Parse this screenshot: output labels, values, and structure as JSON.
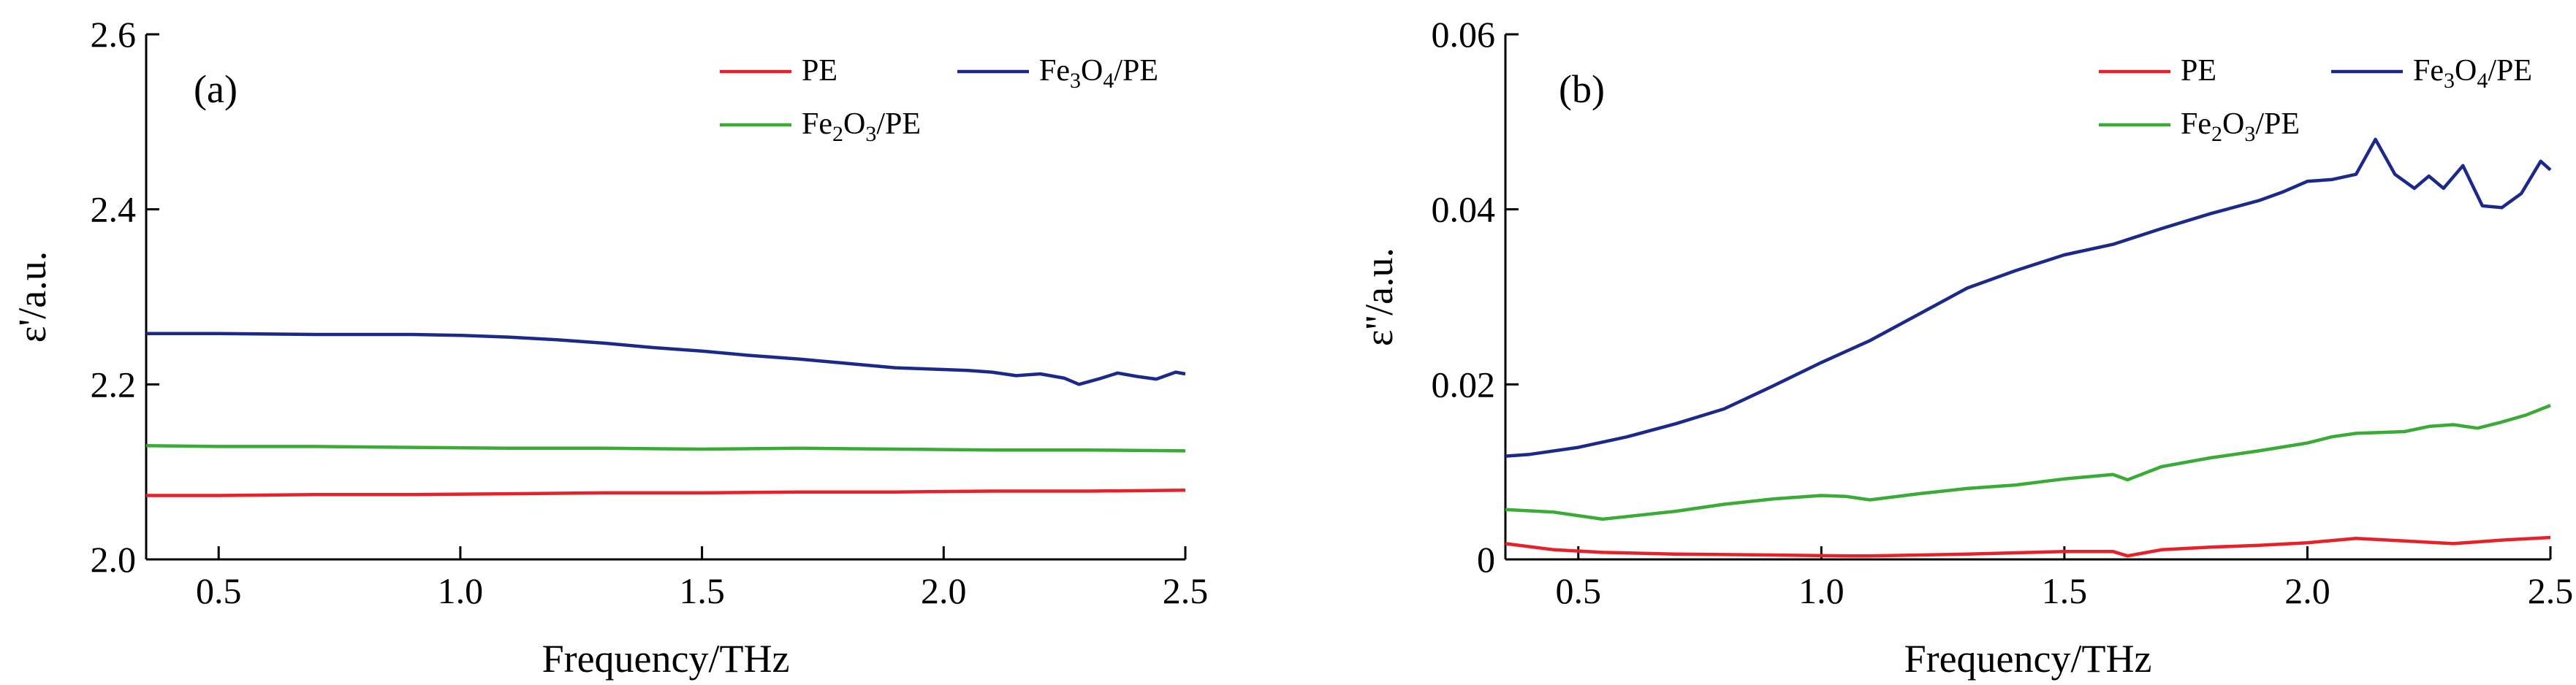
{
  "chart_data": [
    {
      "type": "line",
      "panel_label": "(a)",
      "xlabel": "Frequency/THz",
      "ylabel": "ε'/a.u.",
      "xlim": [
        0.35,
        2.5
      ],
      "ylim": [
        2.0,
        2.6
      ],
      "xticks": [
        0.5,
        1.0,
        1.5,
        2.0,
        2.5
      ],
      "xtick_labels": [
        "0.5",
        "1.0",
        "1.5",
        "2.0",
        "2.5"
      ],
      "yticks": [
        2.0,
        2.2,
        2.4,
        2.6
      ],
      "ytick_labels": [
        "2.0",
        "2.2",
        "2.4",
        "2.6"
      ],
      "grid": false,
      "legend_position": "top-right",
      "series": [
        {
          "name": "PE",
          "name_main": "PE",
          "name_formula": [],
          "color": "#e8202a",
          "x": [
            0.35,
            0.5,
            0.7,
            0.9,
            1.1,
            1.3,
            1.5,
            1.7,
            1.9,
            2.1,
            2.3,
            2.5
          ],
          "y": [
            2.073,
            2.073,
            2.074,
            2.074,
            2.075,
            2.076,
            2.076,
            2.077,
            2.077,
            2.078,
            2.078,
            2.079
          ]
        },
        {
          "name": "Fe₃O₄/PE",
          "name_main": "/PE",
          "name_formula": [
            {
              "t": "Fe",
              "s": false
            },
            {
              "t": "3",
              "s": true
            },
            {
              "t": "O",
              "s": false
            },
            {
              "t": "4",
              "s": true
            }
          ],
          "color": "#1b2a8a",
          "x": [
            0.35,
            0.5,
            0.7,
            0.9,
            1.0,
            1.1,
            1.2,
            1.3,
            1.4,
            1.5,
            1.6,
            1.7,
            1.8,
            1.9,
            2.0,
            2.05,
            2.1,
            2.15,
            2.2,
            2.25,
            2.28,
            2.32,
            2.36,
            2.4,
            2.44,
            2.48,
            2.5
          ],
          "y": [
            2.258,
            2.258,
            2.257,
            2.257,
            2.256,
            2.254,
            2.251,
            2.247,
            2.242,
            2.238,
            2.233,
            2.229,
            2.224,
            2.219,
            2.217,
            2.216,
            2.214,
            2.21,
            2.212,
            2.207,
            2.2,
            2.206,
            2.213,
            2.209,
            2.206,
            2.214,
            2.212
          ]
        },
        {
          "name": "Fe₂O₃/PE",
          "name_main": "/PE",
          "name_formula": [
            {
              "t": "Fe",
              "s": false
            },
            {
              "t": "2",
              "s": true
            },
            {
              "t": "O",
              "s": false
            },
            {
              "t": "3",
              "s": true
            }
          ],
          "color": "#3aab35",
          "x": [
            0.35,
            0.5,
            0.7,
            0.9,
            1.1,
            1.3,
            1.5,
            1.7,
            1.9,
            2.1,
            2.3,
            2.5
          ],
          "y": [
            2.13,
            2.129,
            2.129,
            2.128,
            2.127,
            2.127,
            2.126,
            2.127,
            2.126,
            2.125,
            2.125,
            2.124
          ]
        }
      ]
    },
    {
      "type": "line",
      "panel_label": "(b)",
      "xlabel": "Frequency/THz",
      "ylabel": "ε''/a.u.",
      "xlim": [
        0.35,
        2.5
      ],
      "ylim": [
        0,
        0.06
      ],
      "xticks": [
        0.5,
        1.0,
        1.5,
        2.0,
        2.5
      ],
      "xtick_labels": [
        "0.5",
        "1.0",
        "1.5",
        "2.0",
        "2.5"
      ],
      "yticks": [
        0,
        0.02,
        0.04,
        0.06
      ],
      "ytick_labels": [
        "0",
        "0.02",
        "0.04",
        "0.06"
      ],
      "grid": false,
      "legend_position": "top-right",
      "series": [
        {
          "name": "PE",
          "name_main": "PE",
          "name_formula": [],
          "color": "#e8202a",
          "x": [
            0.35,
            0.45,
            0.55,
            0.7,
            0.9,
            1.05,
            1.1,
            1.3,
            1.5,
            1.6,
            1.63,
            1.7,
            1.8,
            1.9,
            2.0,
            2.1,
            2.2,
            2.3,
            2.4,
            2.5
          ],
          "y": [
            0.0018,
            0.0011,
            0.0008,
            0.0006,
            0.0005,
            0.0004,
            0.0004,
            0.0006,
            0.0009,
            0.0009,
            0.0004,
            0.0011,
            0.0014,
            0.0016,
            0.0019,
            0.0024,
            0.0021,
            0.0018,
            0.0022,
            0.0025
          ]
        },
        {
          "name": "Fe₃O₄/PE",
          "name_main": "/PE",
          "name_formula": [
            {
              "t": "Fe",
              "s": false
            },
            {
              "t": "3",
              "s": true
            },
            {
              "t": "O",
              "s": false
            },
            {
              "t": "4",
              "s": true
            }
          ],
          "color": "#1b2a8a",
          "x": [
            0.35,
            0.4,
            0.5,
            0.6,
            0.7,
            0.8,
            0.9,
            1.0,
            1.1,
            1.2,
            1.3,
            1.4,
            1.5,
            1.6,
            1.7,
            1.8,
            1.9,
            1.95,
            2.0,
            2.05,
            2.1,
            2.14,
            2.18,
            2.22,
            2.25,
            2.28,
            2.32,
            2.36,
            2.4,
            2.44,
            2.48,
            2.5
          ],
          "y": [
            0.0118,
            0.012,
            0.0128,
            0.014,
            0.0155,
            0.0172,
            0.0198,
            0.0225,
            0.025,
            0.028,
            0.031,
            0.033,
            0.0348,
            0.036,
            0.0378,
            0.0395,
            0.041,
            0.042,
            0.0432,
            0.0434,
            0.044,
            0.048,
            0.044,
            0.0424,
            0.0438,
            0.0424,
            0.045,
            0.0404,
            0.0402,
            0.0418,
            0.0455,
            0.0445
          ]
        },
        {
          "name": "Fe₂O₃/PE",
          "name_main": "/PE",
          "name_formula": [
            {
              "t": "Fe",
              "s": false
            },
            {
              "t": "2",
              "s": true
            },
            {
              "t": "O",
              "s": false
            },
            {
              "t": "3",
              "s": true
            }
          ],
          "color": "#3aab35",
          "x": [
            0.35,
            0.45,
            0.5,
            0.55,
            0.6,
            0.7,
            0.8,
            0.9,
            1.0,
            1.05,
            1.1,
            1.2,
            1.3,
            1.4,
            1.5,
            1.6,
            1.63,
            1.7,
            1.8,
            1.9,
            2.0,
            2.05,
            2.1,
            2.2,
            2.25,
            2.3,
            2.35,
            2.4,
            2.45,
            2.5
          ],
          "y": [
            0.0057,
            0.0054,
            0.005,
            0.0046,
            0.0049,
            0.0055,
            0.0063,
            0.0069,
            0.0073,
            0.0072,
            0.0068,
            0.0075,
            0.0081,
            0.0085,
            0.0092,
            0.0097,
            0.0091,
            0.0106,
            0.0116,
            0.0124,
            0.0133,
            0.014,
            0.0144,
            0.0146,
            0.0152,
            0.0154,
            0.015,
            0.0157,
            0.0165,
            0.0176
          ]
        }
      ]
    }
  ]
}
